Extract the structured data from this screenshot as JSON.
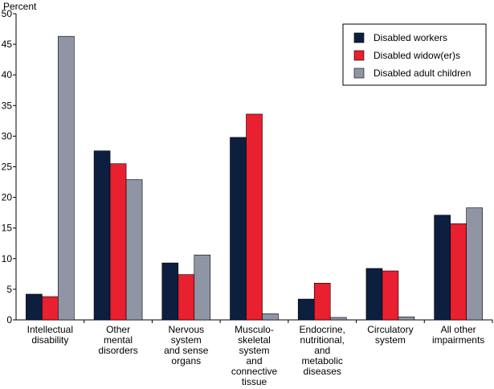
{
  "chart_data": {
    "type": "bar",
    "y_label": "Percent",
    "categories": [
      "Intellectual\ndisability",
      "Other\nmental\ndisorders",
      "Nervous\nsystem\nand sense\norgans",
      "Musculo-\nskeletal\nsystem\nand\nconnective\ntissue",
      "Endocrine,\nnutritional,\nand\nmetabolic\ndiseases",
      "Circulatory\nsystem",
      "All other\nimpairments"
    ],
    "series": [
      {
        "name": "Disabled workers",
        "color": "#0d1f3f",
        "values": [
          4.2,
          27.6,
          9.3,
          29.8,
          3.4,
          8.4,
          17.1
        ]
      },
      {
        "name": "Disabled widow(er)s",
        "color": "#e8202f",
        "values": [
          3.8,
          25.5,
          7.4,
          33.6,
          6.0,
          8.0,
          15.7
        ]
      },
      {
        "name": "Disabled adult children",
        "color": "#9095a6",
        "values": [
          46.3,
          22.9,
          10.6,
          1.0,
          0.4,
          0.5,
          18.3
        ]
      }
    ],
    "ylim": [
      0,
      50
    ],
    "yticks": [
      0,
      5,
      10,
      15,
      20,
      25,
      30,
      35,
      40,
      45,
      50
    ],
    "grid": false,
    "legend": "upper right"
  }
}
